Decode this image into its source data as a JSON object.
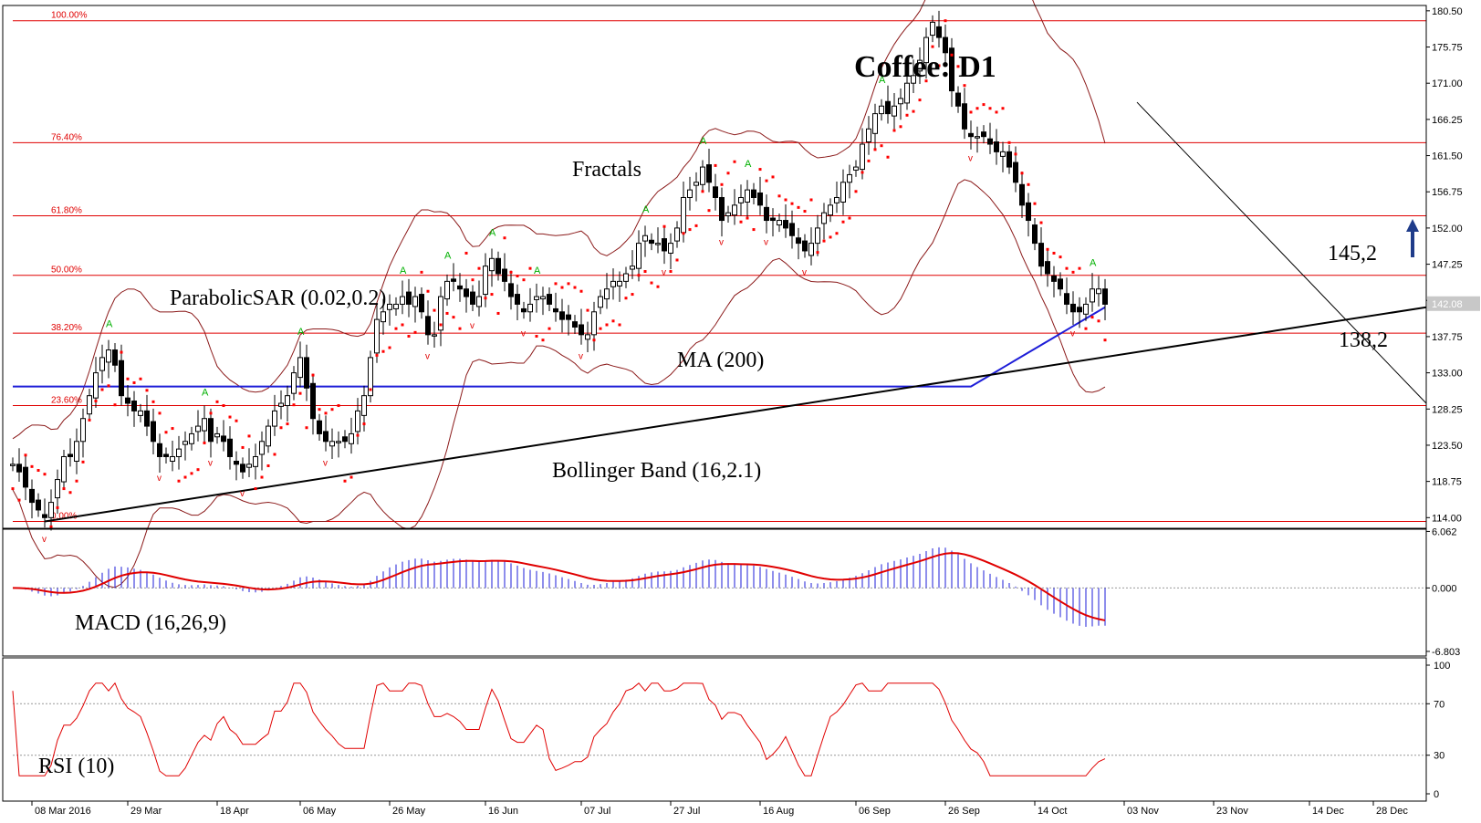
{
  "chart_data": {
    "title": "Coffee: D1",
    "type": "candlestick",
    "symbol": "Coffee",
    "timeframe": "D1",
    "price_axis": {
      "ylim": [
        112.6,
        181.2
      ],
      "ticks": [
        "180.50",
        "175.75",
        "171.00",
        "166.25",
        "161.50",
        "156.75",
        "152.00",
        "147.25",
        "142.50",
        "137.75",
        "133.00",
        "128.25",
        "123.50",
        "118.75",
        "114.00"
      ],
      "current_price": "142.08"
    },
    "date_ticks": [
      {
        "label": "08 Mar 2016",
        "i": 3
      },
      {
        "label": "29 Mar",
        "i": 18
      },
      {
        "label": "18 Apr",
        "i": 32
      },
      {
        "label": "06 May",
        "i": 45
      },
      {
        "label": "26 May",
        "i": 59
      },
      {
        "label": "16 Jun",
        "i": 74
      },
      {
        "label": "07 Jul",
        "i": 89
      },
      {
        "label": "27 Jul",
        "i": 103
      },
      {
        "label": "16 Aug",
        "i": 117
      },
      {
        "label": "06 Sep",
        "i": 132
      },
      {
        "label": "26 Sep",
        "i": 146
      },
      {
        "label": "14 Oct",
        "i": 160
      },
      {
        "label": "03 Nov",
        "i": 174
      },
      {
        "label": "23 Nov",
        "i": 188
      },
      {
        "label": "14 Dec",
        "i": 203
      },
      {
        "label": "28 Dec",
        "i": 213
      }
    ],
    "fibonacci": [
      {
        "label": "100.00%",
        "price": 179.2
      },
      {
        "label": "76.40%",
        "price": 163.2
      },
      {
        "label": "61.80%",
        "price": 153.6
      },
      {
        "label": "50.00%",
        "price": 145.8
      },
      {
        "label": "38.20%",
        "price": 138.2
      },
      {
        "label": "23.60%",
        "price": 128.7
      },
      {
        "label": "0.00%",
        "price": 113.5
      }
    ],
    "price_series": [
      121,
      120,
      118,
      116,
      115,
      114,
      116,
      119,
      122,
      122,
      124,
      127,
      130,
      133,
      135,
      136,
      134,
      130,
      129,
      128,
      128,
      126,
      124,
      122,
      122,
      122,
      123,
      124,
      125,
      126,
      127,
      124,
      125,
      124,
      122,
      121,
      120,
      121,
      122,
      124,
      126,
      128,
      129,
      130,
      133,
      135,
      131,
      127,
      125,
      124,
      124,
      124,
      124,
      125,
      128,
      130,
      135,
      140,
      141,
      142,
      142,
      143,
      142,
      143,
      141,
      138,
      138,
      143,
      145,
      145,
      144,
      143,
      142,
      143,
      147,
      148,
      146,
      145,
      143,
      142,
      141,
      142,
      143,
      143,
      142,
      141,
      140,
      140,
      139,
      138,
      138,
      141,
      143,
      144,
      145,
      145,
      146,
      147,
      150,
      151,
      150,
      150,
      149,
      150,
      152,
      156,
      157,
      158,
      160,
      158,
      156,
      153,
      154,
      155,
      156,
      157,
      156,
      155,
      153,
      153,
      153,
      152,
      151,
      150,
      149,
      150,
      152,
      154,
      155,
      156,
      158,
      159,
      160,
      163,
      165,
      167,
      168,
      167,
      168,
      169,
      171,
      172,
      174,
      177,
      179,
      177,
      175,
      170,
      168,
      165,
      164,
      164,
      164,
      163,
      162,
      162,
      160,
      158,
      155,
      153,
      150,
      147,
      146,
      145,
      144,
      142,
      141,
      141,
      142,
      144,
      144,
      142
    ],
    "annotations": [
      "Fractals",
      "ParabolicSAR (0.02,0.2)",
      "MA (200)",
      "Bollinger Band (16,2.1)",
      "145,2",
      "138,2"
    ],
    "level_145": 145.2,
    "level_138": 138.2,
    "ma200_flat": 131.2,
    "macd": {
      "label": "MACD (16,26,9)",
      "ticks": [
        "6.062",
        "0.000",
        "-6.803"
      ],
      "ylim": [
        -7.3,
        6.3
      ]
    },
    "rsi": {
      "label": "RSI (10)",
      "ticks": [
        "100",
        "70",
        "30",
        "0"
      ],
      "ylim": [
        0,
        100
      ]
    },
    "colors": {
      "fib": "#e00000",
      "ma": "#1d1dd8",
      "bollinger": "#8b1a1a",
      "sar": "#ff0000",
      "fractal_up": "#00b000",
      "fractal_down": "#e00000",
      "macd_hist": "#1d1dd8",
      "macd_signal": "#e00000",
      "rsi": "#e00000",
      "trendline": "#000000",
      "arrow": "#1f3c8a"
    }
  }
}
